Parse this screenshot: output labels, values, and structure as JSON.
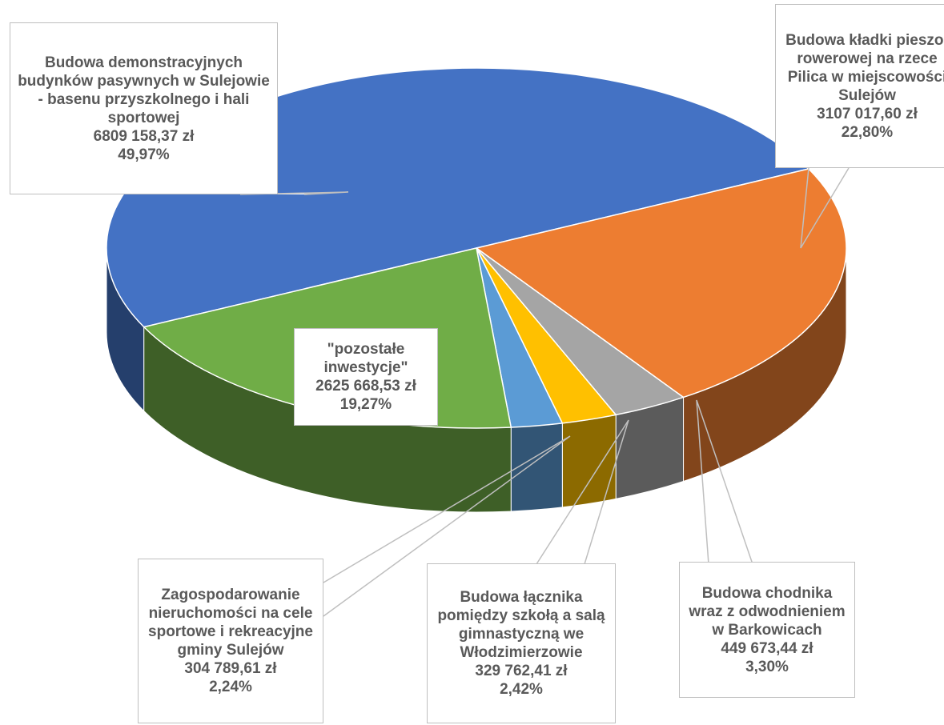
{
  "chart_data": {
    "type": "pie",
    "categories": [
      "Budowa demonstracyjnych budynków pasywnych w Sulejowie - basenu przyszkolnego i hali sportowej",
      "Budowa kładki pieszo-rowerowej na rzece Pilica w miejscowości Sulejów",
      "Budowa chodnika wraz z odwodnieniem w Barkowicach",
      "Budowa łącznika pomiędzy szkołą a salą gimnastyczną we Włodzimierzowie",
      "Zagospodarowanie nieruchomości na cele sportowe i rekreacyjne gminy Sulejów",
      "\"pozostałe inwestycje\""
    ],
    "values": [
      49.97,
      22.8,
      3.3,
      2.42,
      2.24,
      19.27
    ],
    "value_labels": [
      "49,97%",
      "22,80%",
      "3,30%",
      "2,42%",
      "2,24%",
      "19,27%"
    ],
    "amount_labels": [
      "6809 158,37 zł",
      "3107 017,60 zł",
      "449 673,44 zł",
      "329 762,41 zł",
      "304 789,61 zł",
      "2625 668,53 zł"
    ],
    "colors": [
      "#4472c4",
      "#ed7d31",
      "#a5a5a5",
      "#ffc000",
      "#5b9bd5",
      "#70ad47"
    ],
    "three_d": true
  }
}
